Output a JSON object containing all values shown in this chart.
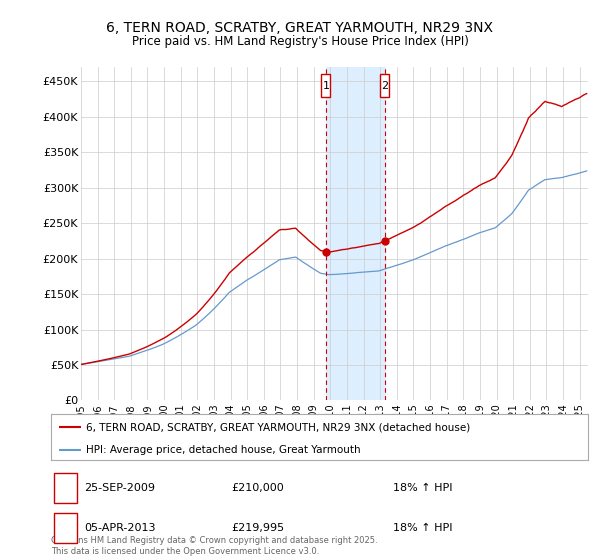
{
  "title": "6, TERN ROAD, SCRATBY, GREAT YARMOUTH, NR29 3NX",
  "subtitle": "Price paid vs. HM Land Registry's House Price Index (HPI)",
  "ylim": [
    0,
    470000
  ],
  "yticks": [
    0,
    50000,
    100000,
    150000,
    200000,
    250000,
    300000,
    350000,
    400000,
    450000
  ],
  "ytick_labels": [
    "£0",
    "£50K",
    "£100K",
    "£150K",
    "£200K",
    "£250K",
    "£300K",
    "£350K",
    "£400K",
    "£450K"
  ],
  "legend_label_red": "6, TERN ROAD, SCRATBY, GREAT YARMOUTH, NR29 3NX (detached house)",
  "legend_label_blue": "HPI: Average price, detached house, Great Yarmouth",
  "annotation1_date": "25-SEP-2009",
  "annotation1_price": "£210,000",
  "annotation1_hpi": "18% ↑ HPI",
  "annotation2_date": "05-APR-2013",
  "annotation2_price": "£219,995",
  "annotation2_hpi": "18% ↑ HPI",
  "footer": "Contains HM Land Registry data © Crown copyright and database right 2025.\nThis data is licensed under the Open Government Licence v3.0.",
  "red_color": "#cc0000",
  "blue_color": "#6699cc",
  "shade_color": "#ddeeff",
  "annotation_box_color": "#cc0000",
  "background_color": "#ffffff",
  "grid_color": "#cccccc",
  "sale1_x": 2009.73,
  "sale2_x": 2013.26,
  "sale1_y": 210000,
  "sale2_y": 219995,
  "xmin": 1995,
  "xmax": 2025.5
}
